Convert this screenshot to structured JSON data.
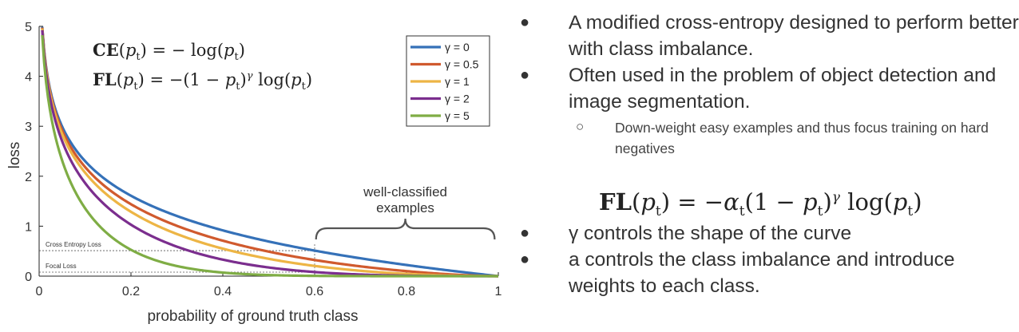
{
  "chart_data": {
    "type": "line",
    "xlabel": "probability of ground truth class",
    "ylabel": "loss",
    "xlim": [
      0,
      1
    ],
    "ylim": [
      0,
      5
    ],
    "xticks": [
      "0",
      "0.2",
      "0.4",
      "0.6",
      "0.8",
      "1"
    ],
    "yticks": [
      "0",
      "1",
      "2",
      "3",
      "4",
      "5"
    ],
    "grid": false,
    "legend_position": "top-right",
    "x": [
      0.01,
      0.05,
      0.1,
      0.2,
      0.3,
      0.4,
      0.5,
      0.6,
      0.7,
      0.8,
      0.9,
      1.0
    ],
    "series": [
      {
        "name": "γ = 0",
        "gamma": 0,
        "color": "#3571b8",
        "values": [
          4.61,
          3.0,
          2.3,
          1.61,
          1.2,
          0.92,
          0.69,
          0.51,
          0.36,
          0.22,
          0.11,
          0.0
        ]
      },
      {
        "name": "γ = 0.5",
        "gamma": 0.5,
        "color": "#d05a2e",
        "values": [
          4.58,
          2.92,
          2.18,
          1.44,
          1.01,
          0.71,
          0.49,
          0.32,
          0.19,
          0.1,
          0.03,
          0.0
        ]
      },
      {
        "name": "γ = 1",
        "gamma": 1,
        "color": "#edb545",
        "values": [
          4.56,
          2.85,
          2.07,
          1.29,
          0.84,
          0.55,
          0.35,
          0.2,
          0.11,
          0.04,
          0.01,
          0.0
        ]
      },
      {
        "name": "γ = 2",
        "gamma": 2,
        "color": "#7b2e8e",
        "values": [
          4.52,
          2.71,
          1.87,
          1.03,
          0.59,
          0.33,
          0.17,
          0.08,
          0.03,
          0.01,
          0.0,
          0.0
        ]
      },
      {
        "name": "γ = 5",
        "gamma": 5,
        "color": "#7fad45",
        "values": [
          4.38,
          2.32,
          1.36,
          0.53,
          0.2,
          0.07,
          0.02,
          0.01,
          0.0,
          0.0,
          0.0,
          0.0
        ]
      }
    ],
    "annotations": {
      "brace_label_line1": "well-classified",
      "brace_label_line2": "examples",
      "ce_loss_label": "Cross Entropy Loss",
      "focal_loss_label": "Focal Loss",
      "marker_x": 0.6,
      "ce_level": 0.51,
      "focal_level": 0.08
    }
  },
  "chart_equations": {
    "ce": "CE(p_t) = − log(p_t)",
    "fl": "FL(p_t) = −(1 − p_t)^γ log(p_t)"
  },
  "slide": {
    "bullets": [
      "A modified cross-entropy designed to perform better with class imbalance.",
      "Often used in the problem of object detection and image segmentation."
    ],
    "sub_bullet": "Down-weight easy examples and thus focus training on hard negatives",
    "formula": "FL(p_t) = −α_t(1 − p_t)^γ log(p_t)",
    "bullets2": [
      "γ controls the shape of the curve",
      "a controls the class imbalance and introduce weights to each class."
    ],
    "bullet_symbol": "●",
    "sub_bullet_symbol": "○"
  }
}
